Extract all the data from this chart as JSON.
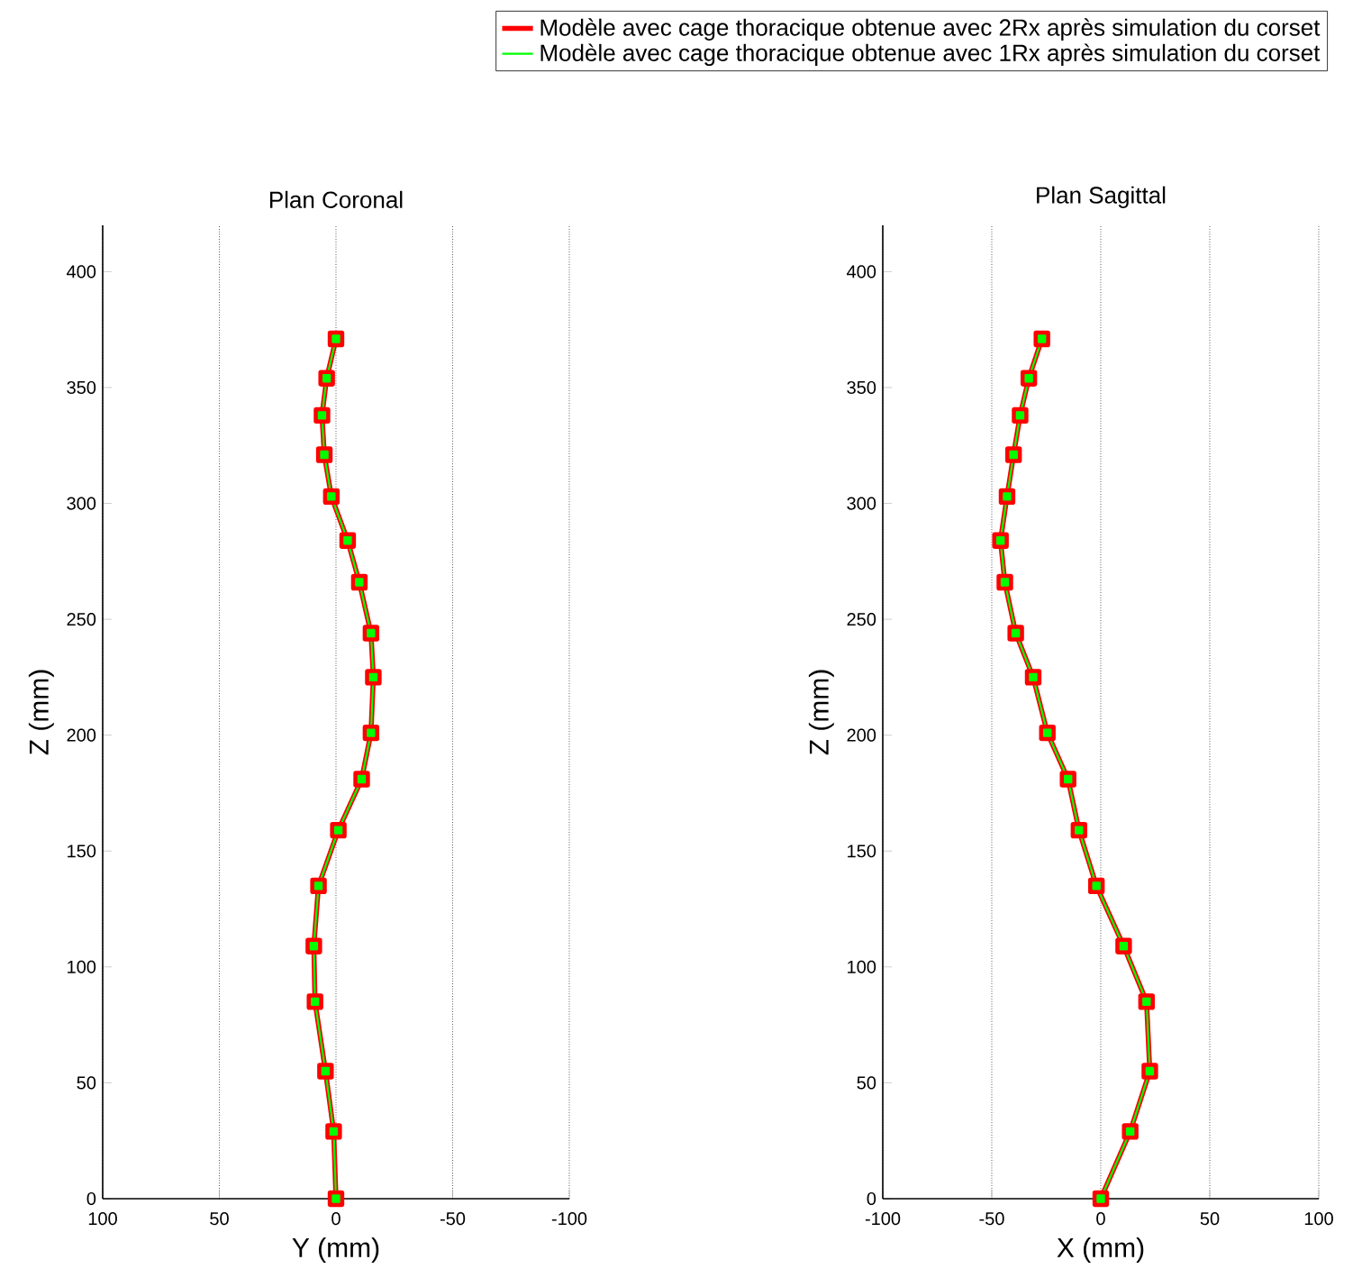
{
  "chart_data": [
    {
      "type": "line",
      "title": "Plan Coronal",
      "xlabel": "Y (mm)",
      "ylabel": "Z (mm)",
      "xlim": [
        100,
        -100
      ],
      "xticks": [
        100,
        50,
        0,
        -50,
        -100
      ],
      "ylim": [
        0,
        420
      ],
      "yticks": [
        0,
        50,
        100,
        150,
        200,
        250,
        300,
        350,
        400
      ],
      "grid": "x",
      "marker": "square",
      "legend": "top",
      "series": [
        {
          "name": "Modèle avec cage thoracique obtenue avec 2Rx après simulation du corset",
          "color": "#ff0000",
          "x": [
            0,
            4,
            6,
            5,
            2,
            -5,
            -10,
            -15,
            -16,
            -15,
            -11,
            -1,
            7.5,
            9.5,
            9,
            4.5,
            1,
            0
          ],
          "values": [
            371,
            354,
            338,
            321,
            303,
            284,
            266,
            244,
            225,
            201,
            181,
            159,
            135,
            109,
            85,
            55,
            29,
            0
          ]
        },
        {
          "name": "Modèle avec cage thoracique obtenue avec 1Rx après simulation du corset",
          "color": "#00ff00",
          "x": [
            0,
            4,
            6,
            5,
            2,
            -5,
            -10,
            -15,
            -16,
            -15,
            -11,
            -1,
            7.5,
            9.5,
            9,
            4.5,
            1,
            0
          ],
          "values": [
            371,
            354,
            338,
            321,
            303,
            284,
            266,
            244,
            225,
            201,
            181,
            159,
            135,
            109,
            85,
            55,
            29,
            0
          ]
        }
      ]
    },
    {
      "type": "line",
      "title": "Plan Sagittal",
      "xlabel": "X (mm)",
      "ylabel": "Z (mm)",
      "xlim": [
        -100,
        100
      ],
      "xticks": [
        -100,
        -50,
        0,
        50,
        100
      ],
      "ylim": [
        0,
        420
      ],
      "yticks": [
        0,
        50,
        100,
        150,
        200,
        250,
        300,
        350,
        400
      ],
      "grid": "x",
      "marker": "square",
      "series": [
        {
          "color": "#ff0000",
          "x": [
            -27,
            -33,
            -37,
            -40,
            -43,
            -46,
            -44,
            -39,
            -31,
            -24.5,
            -15,
            -10,
            -2,
            10.5,
            21,
            22.5,
            13.5,
            0
          ],
          "values": [
            371,
            354,
            338,
            321,
            303,
            284,
            266,
            244,
            225,
            201,
            181,
            159,
            135,
            109,
            85,
            55,
            29,
            0
          ]
        },
        {
          "color": "#00ff00",
          "x": [
            -27,
            -33,
            -37,
            -40,
            -43,
            -46,
            -44,
            -39,
            -31,
            -24.5,
            -15,
            -10,
            -2,
            10.5,
            21,
            22.5,
            13.5,
            0
          ],
          "values": [
            371,
            354,
            338,
            321,
            303,
            284,
            266,
            244,
            225,
            201,
            181,
            159,
            135,
            109,
            85,
            55,
            29,
            0
          ]
        }
      ]
    }
  ]
}
